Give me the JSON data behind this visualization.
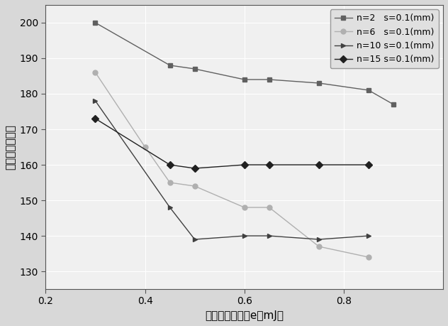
{
  "series": [
    {
      "label": "n=2   s=0.1(mm)",
      "x": [
        0.3,
        0.45,
        0.5,
        0.6,
        0.65,
        0.75,
        0.85,
        0.9
      ],
      "y": [
        200,
        188,
        187,
        184,
        184,
        183,
        181,
        177
      ],
      "color": "#606060",
      "marker": "s",
      "markersize": 5,
      "linewidth": 1.0,
      "zorder": 3
    },
    {
      "label": "n=6   s=0.1(mm)",
      "x": [
        0.3,
        0.4,
        0.45,
        0.5,
        0.6,
        0.65,
        0.75,
        0.85
      ],
      "y": [
        186,
        165,
        155,
        154,
        148,
        148,
        137,
        134
      ],
      "color": "#b0b0b0",
      "marker": "o",
      "markersize": 5,
      "linewidth": 1.0,
      "zorder": 2
    },
    {
      "label": "n=10 s=0.1(mm)",
      "x": [
        0.3,
        0.45,
        0.5,
        0.6,
        0.65,
        0.75,
        0.85
      ],
      "y": [
        178,
        148,
        139,
        140,
        140,
        139,
        140
      ],
      "color": "#404040",
      "marker": ">",
      "markersize": 5,
      "linewidth": 1.0,
      "zorder": 3
    },
    {
      "label": "n=15 s=0.1(mm)",
      "x": [
        0.3,
        0.45,
        0.5,
        0.6,
        0.65,
        0.75,
        0.85
      ],
      "y": [
        173,
        160,
        159,
        160,
        160,
        160,
        160
      ],
      "color": "#202020",
      "marker": "D",
      "markersize": 5,
      "linewidth": 1.0,
      "zorder": 4
    }
  ],
  "xlabel": "激光单脉冲能量e（mJ）",
  "ylabel": "图像灰度测量值",
  "xlim": [
    0.2,
    1.0
  ],
  "ylim": [
    125,
    205
  ],
  "xticks": [
    0.2,
    0.4,
    0.6,
    0.8
  ],
  "yticks": [
    130,
    140,
    150,
    160,
    170,
    180,
    190,
    200
  ],
  "plot_bg": "#f0f0f0",
  "fig_bg": "#d8d8d8",
  "grid_color": "#ffffff",
  "label_fontsize": 11,
  "tick_fontsize": 10,
  "legend_fontsize": 9
}
